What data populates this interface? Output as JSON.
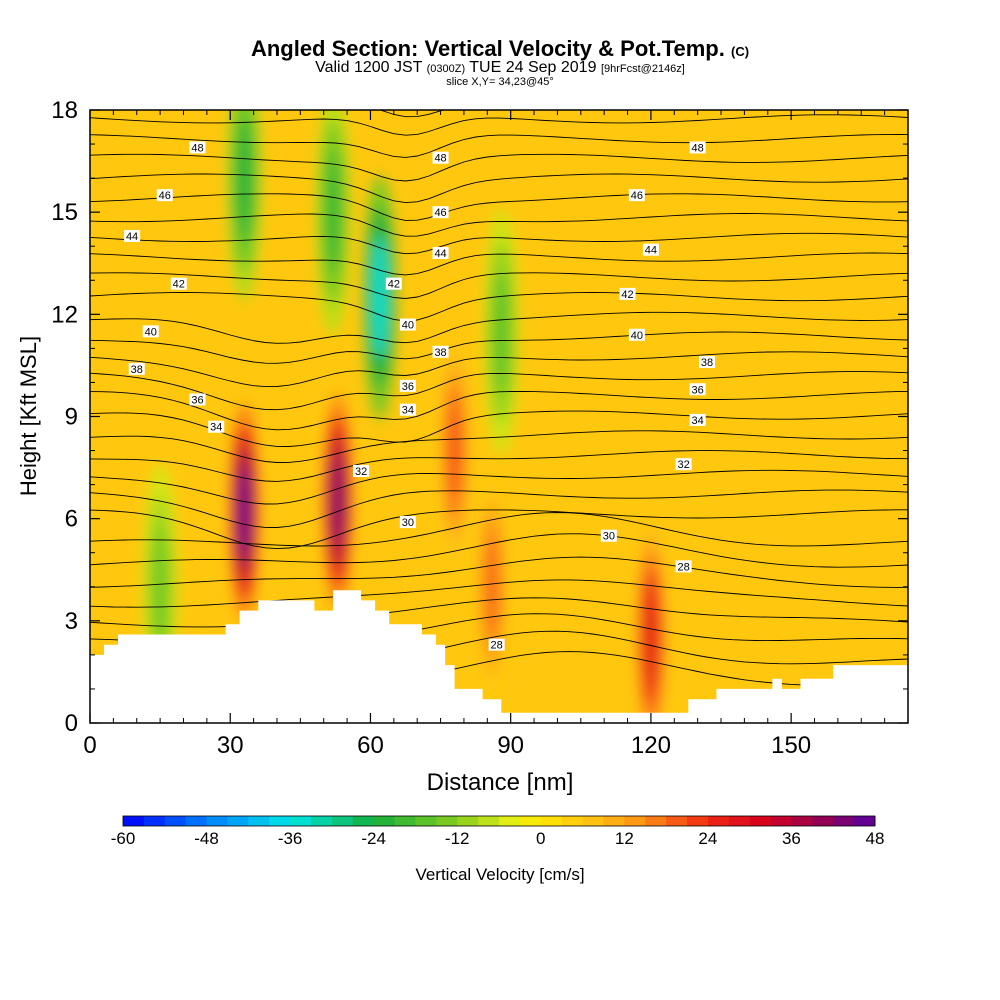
{
  "header": {
    "title_main": "Angled Section: Vertical Velocity & Pot.Temp.",
    "title_suffix": "(C)",
    "valid_a": "Valid 1200 JST",
    "valid_b": "(0300Z)",
    "valid_c": "TUE 24 Sep 2019",
    "valid_d": "[9hrFcst@2146z]",
    "slice": "slice X,Y= 34,23@45°"
  },
  "chart_data": {
    "type": "heatmap",
    "title": "Angled Section: Vertical Velocity & Pot.Temp. (C)",
    "xlabel": "Distance [nm]",
    "ylabel": "Height [Kft MSL]",
    "xlim": [
      0,
      175
    ],
    "ylim": [
      0,
      18
    ],
    "x_ticks": [
      0,
      30,
      60,
      90,
      120,
      150
    ],
    "y_ticks": [
      0,
      3,
      6,
      9,
      12,
      15,
      18
    ],
    "colorbar": {
      "label": "Vertical Velocity [cm/s]",
      "range": [
        -60,
        48
      ],
      "ticks": [
        -60,
        -48,
        -36,
        -24,
        -12,
        0,
        12,
        24,
        36,
        48
      ]
    },
    "field_features": [
      {
        "kind": "updraft",
        "x": 33,
        "y_center": 6.2,
        "peak": 45
      },
      {
        "kind": "updraft",
        "x": 53,
        "y_center": 6.5,
        "peak": 42
      },
      {
        "kind": "updraft",
        "x": 78,
        "y_center": 8,
        "peak": 20
      },
      {
        "kind": "updraft",
        "x": 86,
        "y_center": 4,
        "peak": 18
      },
      {
        "kind": "updraft",
        "x": 120,
        "y_center": 2.5,
        "peak": 28
      },
      {
        "kind": "downdraft",
        "x": 62,
        "y_center": 12.5,
        "peak": -34
      },
      {
        "kind": "downdraft",
        "x": 33,
        "y_center": 16,
        "peak": -22
      },
      {
        "kind": "downdraft",
        "x": 52,
        "y_center": 15,
        "peak": -20
      },
      {
        "kind": "downdraft",
        "x": 88,
        "y_center": 11.5,
        "peak": -16
      },
      {
        "kind": "downdraft",
        "x": 15,
        "y_center": 4,
        "peak": -14
      }
    ],
    "terrain": [
      [
        0,
        2
      ],
      [
        3,
        2
      ],
      [
        3,
        2.3
      ],
      [
        6,
        2.3
      ],
      [
        6,
        2.6
      ],
      [
        29,
        2.6
      ],
      [
        29,
        2.9
      ],
      [
        32,
        2.9
      ],
      [
        32,
        3.3
      ],
      [
        36,
        3.3
      ],
      [
        36,
        3.6
      ],
      [
        48,
        3.6
      ],
      [
        48,
        3.3
      ],
      [
        52,
        3.3
      ],
      [
        52,
        3.9
      ],
      [
        58,
        3.9
      ],
      [
        58,
        3.6
      ],
      [
        61,
        3.6
      ],
      [
        61,
        3.3
      ],
      [
        64,
        3.3
      ],
      [
        64,
        2.9
      ],
      [
        71,
        2.9
      ],
      [
        71,
        2.6
      ],
      [
        74,
        2.6
      ],
      [
        74,
        2.3
      ],
      [
        76,
        2.3
      ],
      [
        76,
        1.7
      ],
      [
        78,
        1.7
      ],
      [
        78,
        1
      ],
      [
        84,
        1
      ],
      [
        84,
        0.7
      ],
      [
        88,
        0.7
      ],
      [
        88,
        0.3
      ],
      [
        96,
        0.3
      ],
      [
        96,
        0.3
      ],
      [
        128,
        0.3
      ],
      [
        128,
        0.7
      ],
      [
        134,
        0.7
      ],
      [
        134,
        1
      ],
      [
        146,
        1
      ],
      [
        146,
        1.3
      ],
      [
        148,
        1.3
      ],
      [
        148,
        1
      ],
      [
        152,
        1
      ],
      [
        152,
        1.3
      ],
      [
        159,
        1.3
      ],
      [
        159,
        1.7
      ],
      [
        175,
        1.7
      ]
    ],
    "theta_contour_labels": [
      {
        "v": "48",
        "x": 23,
        "y": 16.9
      },
      {
        "v": "48",
        "x": 75,
        "y": 16.6
      },
      {
        "v": "48",
        "x": 130,
        "y": 16.9
      },
      {
        "v": "46",
        "x": 16,
        "y": 15.5
      },
      {
        "v": "46",
        "x": 75,
        "y": 15
      },
      {
        "v": "46",
        "x": 117,
        "y": 15.5
      },
      {
        "v": "44",
        "x": 9,
        "y": 14.3
      },
      {
        "v": "44",
        "x": 75,
        "y": 13.8
      },
      {
        "v": "44",
        "x": 120,
        "y": 13.9
      },
      {
        "v": "42",
        "x": 19,
        "y": 12.9
      },
      {
        "v": "42",
        "x": 65,
        "y": 12.9
      },
      {
        "v": "42",
        "x": 115,
        "y": 12.6
      },
      {
        "v": "40",
        "x": 13,
        "y": 11.5
      },
      {
        "v": "40",
        "x": 68,
        "y": 11.7
      },
      {
        "v": "40",
        "x": 117,
        "y": 11.4
      },
      {
        "v": "38",
        "x": 10,
        "y": 10.4
      },
      {
        "v": "38",
        "x": 75,
        "y": 10.9
      },
      {
        "v": "38",
        "x": 132,
        "y": 10.6
      },
      {
        "v": "36",
        "x": 23,
        "y": 9.5
      },
      {
        "v": "36",
        "x": 68,
        "y": 9.9
      },
      {
        "v": "36",
        "x": 130,
        "y": 9.8
      },
      {
        "v": "34",
        "x": 27,
        "y": 8.7
      },
      {
        "v": "34",
        "x": 68,
        "y": 9.2
      },
      {
        "v": "34",
        "x": 130,
        "y": 8.9
      },
      {
        "v": "32",
        "x": 58,
        "y": 7.4
      },
      {
        "v": "32",
        "x": 127,
        "y": 7.6
      },
      {
        "v": "30",
        "x": 68,
        "y": 5.9
      },
      {
        "v": "30",
        "x": 111,
        "y": 5.5
      },
      {
        "v": "28",
        "x": 127,
        "y": 4.6
      },
      {
        "v": "28",
        "x": 87,
        "y": 2.3
      }
    ]
  }
}
